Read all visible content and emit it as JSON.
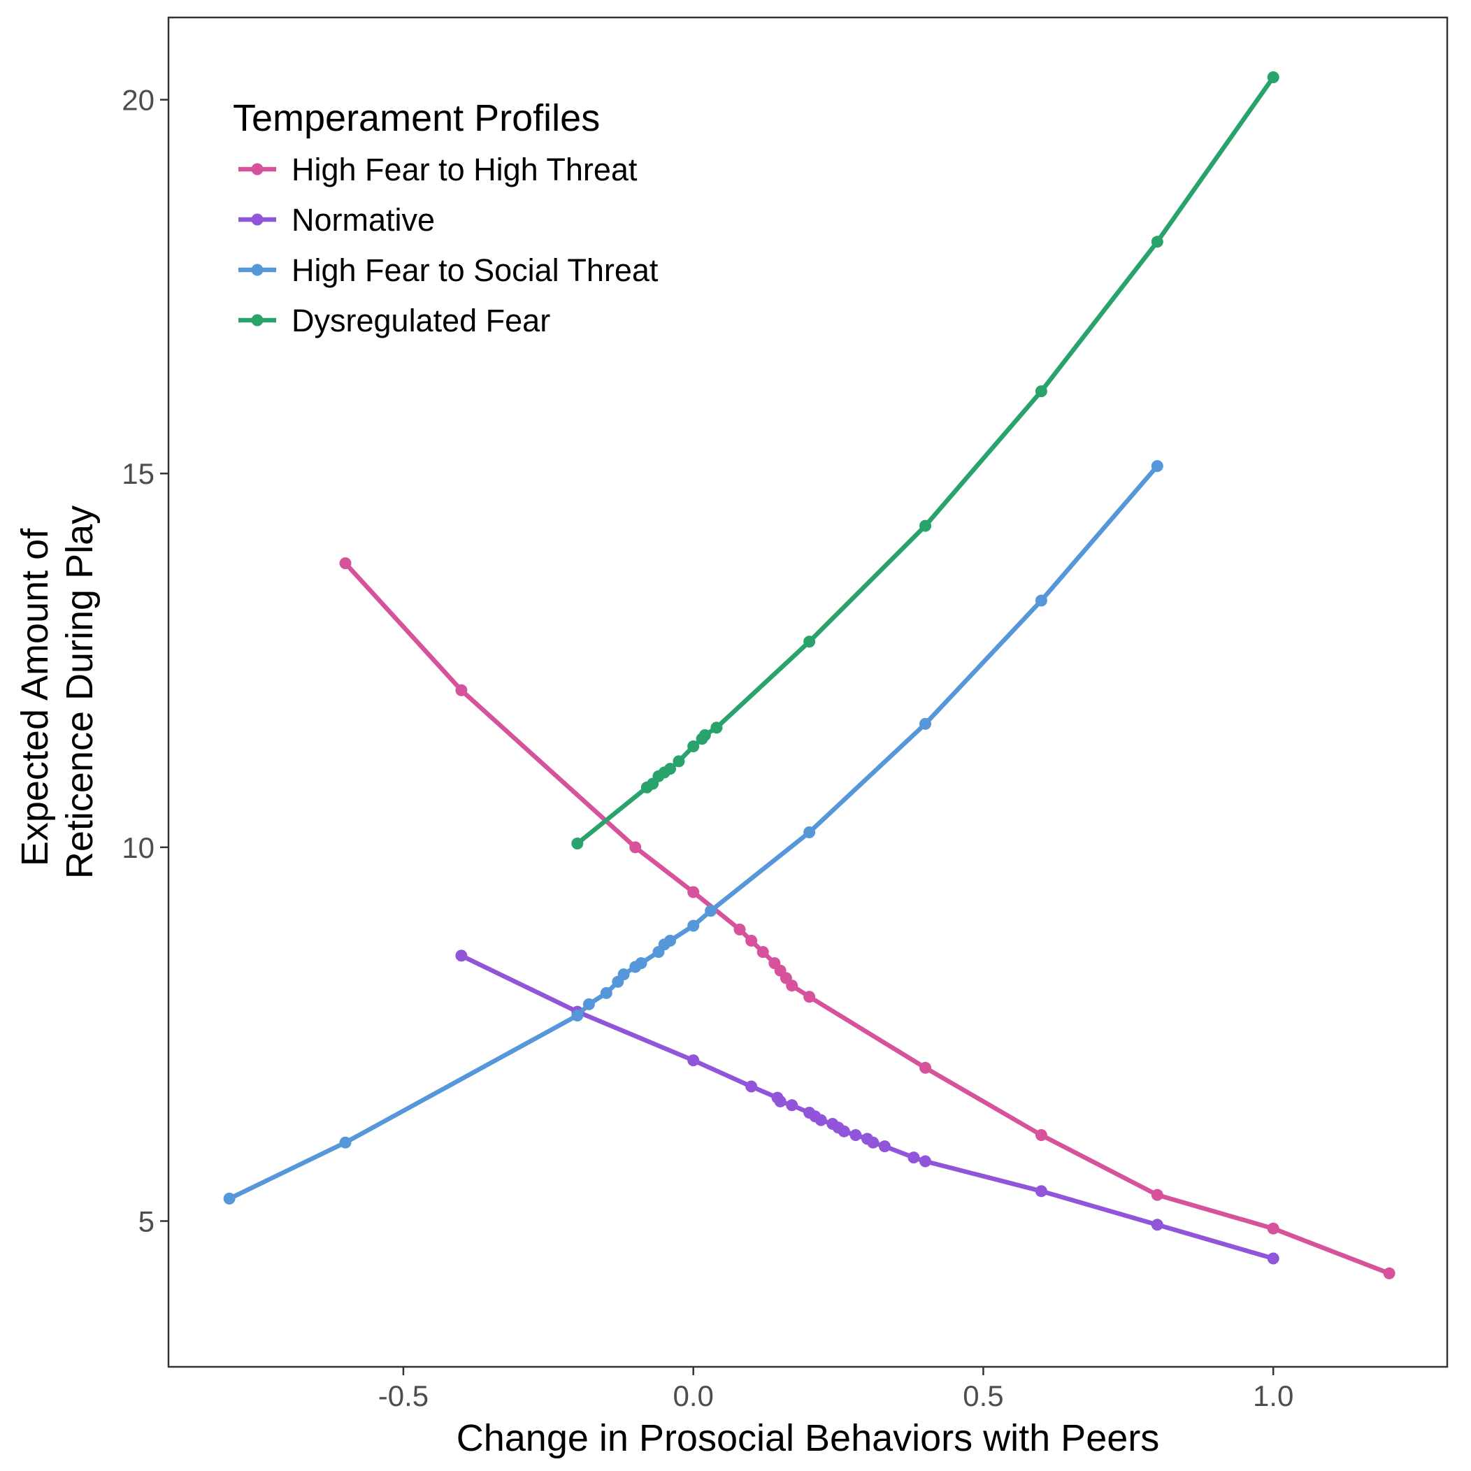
{
  "chart_data": {
    "type": "line",
    "title": "",
    "xlabel": "Change in Prosocial Behaviors with Peers",
    "ylabel_lines": [
      "Expected Amount of",
      "Reticence During Play"
    ],
    "xlim": [
      -0.905,
      1.3
    ],
    "ylim": [
      3.05,
      21.1
    ],
    "x_ticks": [
      -0.5,
      0.0,
      0.5,
      1.0
    ],
    "x_tick_labels": [
      "-0.5",
      "0.0",
      "0.5",
      "1.0"
    ],
    "y_ticks": [
      5,
      10,
      15,
      20
    ],
    "y_tick_labels": [
      "5",
      "10",
      "15",
      "20"
    ],
    "grid": false,
    "legend": {
      "title": "Temperament Profiles",
      "position": "top-left (inside)"
    },
    "series": [
      {
        "name": "High Fear to High Threat",
        "color": "#D6539B",
        "x": [
          -0.6,
          -0.4,
          -0.1,
          0.0,
          0.08,
          0.1,
          0.12,
          0.14,
          0.15,
          0.16,
          0.17,
          0.2,
          0.4,
          0.6,
          0.8,
          1.0,
          1.2
        ],
        "y": [
          13.8,
          12.1,
          10.0,
          9.4,
          8.9,
          8.75,
          8.6,
          8.45,
          8.35,
          8.25,
          8.15,
          8.0,
          7.05,
          6.15,
          5.35,
          4.9,
          4.3
        ]
      },
      {
        "name": "Normative",
        "color": "#9155D9",
        "x": [
          -0.4,
          -0.2,
          0.0,
          0.1,
          0.145,
          0.15,
          0.17,
          0.2,
          0.21,
          0.22,
          0.24,
          0.25,
          0.26,
          0.28,
          0.3,
          0.31,
          0.33,
          0.38,
          0.4,
          0.6,
          0.8,
          1.0
        ],
        "y": [
          8.55,
          7.8,
          7.15,
          6.8,
          6.65,
          6.6,
          6.55,
          6.45,
          6.4,
          6.35,
          6.3,
          6.25,
          6.2,
          6.15,
          6.1,
          6.05,
          6.0,
          5.85,
          5.8,
          5.4,
          4.95,
          4.5
        ]
      },
      {
        "name": "High Fear to Social Threat",
        "color": "#5597D9",
        "x": [
          -0.8,
          -0.6,
          -0.2,
          -0.18,
          -0.15,
          -0.13,
          -0.12,
          -0.1,
          -0.09,
          -0.06,
          -0.05,
          -0.04,
          0.0,
          0.03,
          0.2,
          0.4,
          0.6,
          0.8
        ],
        "y": [
          5.3,
          6.05,
          7.75,
          7.9,
          8.05,
          8.2,
          8.3,
          8.4,
          8.45,
          8.6,
          8.7,
          8.75,
          8.95,
          9.15,
          10.2,
          11.65,
          13.3,
          15.1
        ]
      },
      {
        "name": "Dysregulated Fear",
        "color": "#27A36B",
        "x": [
          -0.2,
          -0.08,
          -0.07,
          -0.06,
          -0.05,
          -0.04,
          -0.025,
          0.0,
          0.015,
          0.02,
          0.04,
          0.2,
          0.4,
          0.6,
          0.8,
          1.0
        ],
        "y": [
          10.05,
          10.8,
          10.85,
          10.95,
          11.0,
          11.05,
          11.15,
          11.35,
          11.45,
          11.5,
          11.6,
          12.75,
          14.3,
          16.1,
          18.1,
          20.3
        ]
      }
    ]
  }
}
